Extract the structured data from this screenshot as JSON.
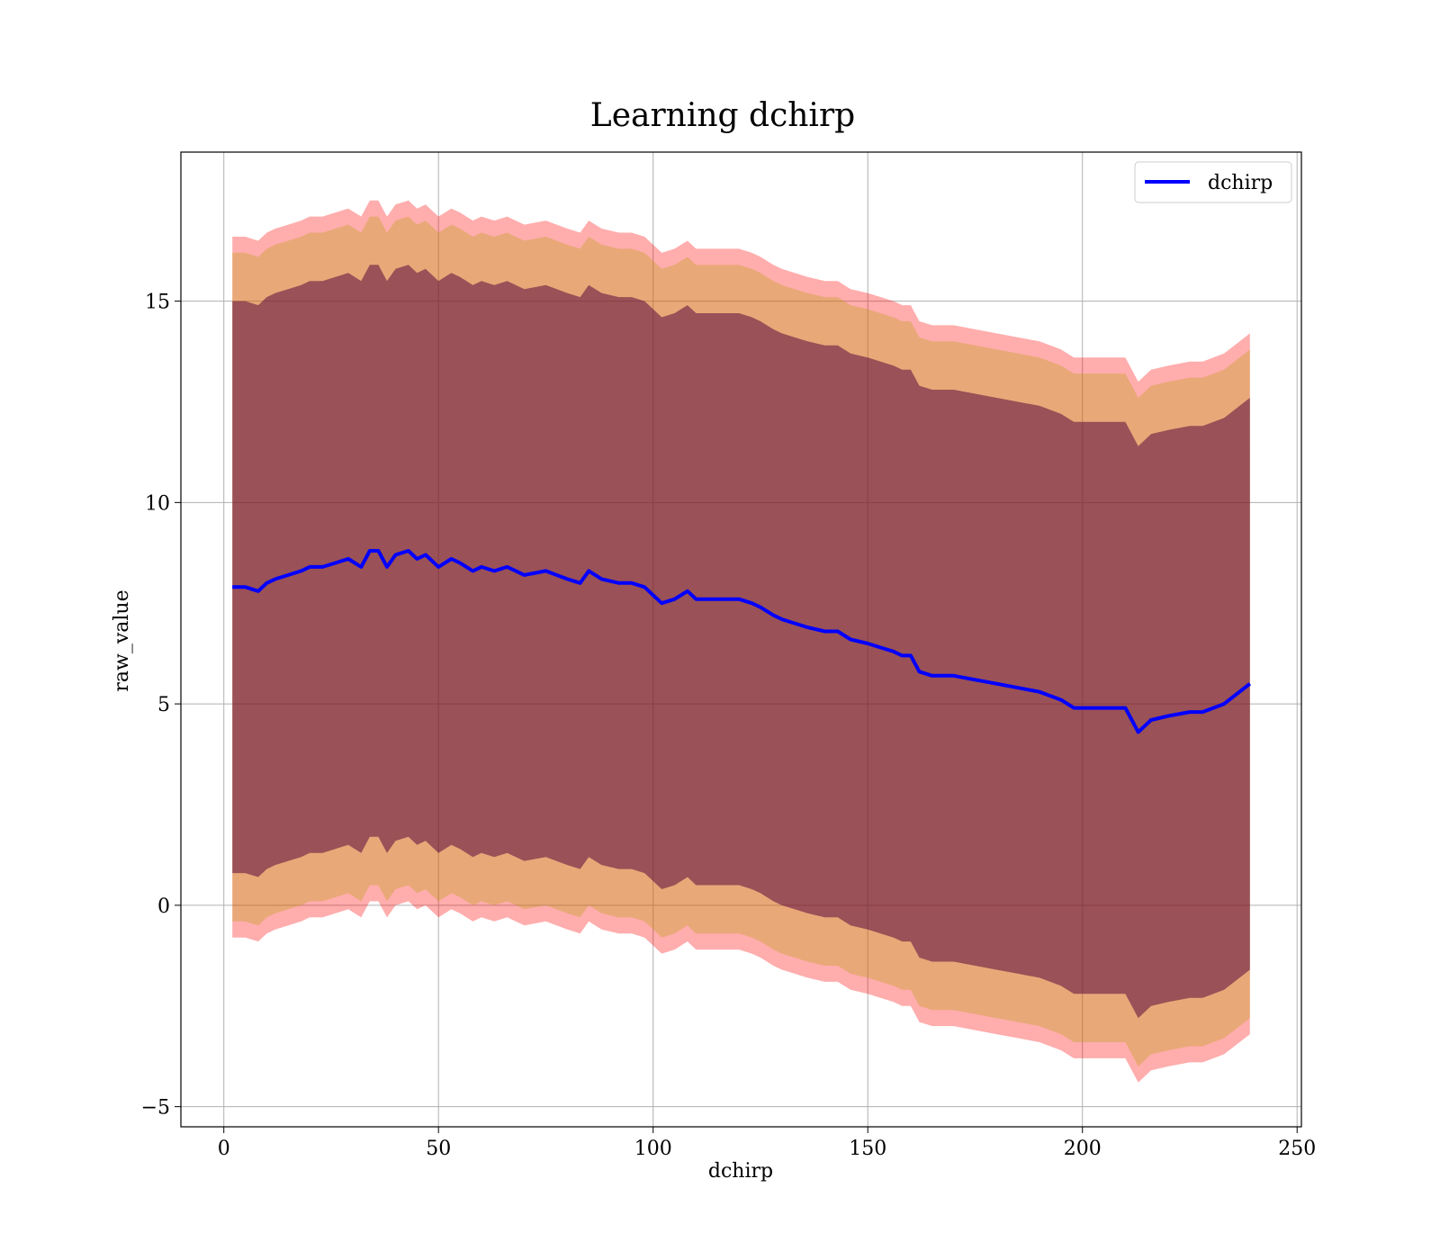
{
  "chart_data": {
    "type": "line",
    "title": "Learning dchirp",
    "xlabel": "dchirp",
    "ylabel": "raw_value",
    "xlim": [
      -10,
      251
    ],
    "ylim": [
      -5.5,
      18.7
    ],
    "xticks": [
      0,
      50,
      100,
      150,
      200,
      250
    ],
    "yticks": [
      -5,
      0,
      5,
      10,
      15
    ],
    "xtick_labels": [
      "0",
      "50",
      "100",
      "150",
      "200",
      "250"
    ],
    "ytick_labels": [
      "−5",
      "0",
      "5",
      "10",
      "15"
    ],
    "grid": true,
    "legend": {
      "location": "top-right",
      "entries": [
        "dchirp"
      ]
    },
    "colors": {
      "line": "#0000ff",
      "band_outer": "#ff0000",
      "band_middle": "#b5a000",
      "band_inner": "#5a0a3c"
    },
    "series": [
      {
        "name": "dchirp",
        "x": [
          2,
          5,
          8,
          10,
          12,
          15,
          18,
          20,
          23,
          26,
          29,
          32,
          34,
          36,
          38,
          40,
          43,
          45,
          47,
          50,
          53,
          55,
          58,
          60,
          63,
          66,
          70,
          75,
          80,
          83,
          85,
          88,
          92,
          95,
          98,
          100,
          102,
          105,
          108,
          110,
          113,
          116,
          120,
          123,
          125,
          128,
          130,
          133,
          136,
          140,
          143,
          146,
          150,
          153,
          156,
          158,
          160,
          162,
          165,
          170,
          175,
          180,
          185,
          190,
          195,
          198,
          200,
          205,
          210,
          213,
          216,
          220,
          225,
          228,
          233,
          239
        ],
        "values": [
          7.9,
          7.9,
          7.8,
          8.0,
          8.1,
          8.2,
          8.3,
          8.4,
          8.4,
          8.5,
          8.6,
          8.4,
          8.8,
          8.8,
          8.4,
          8.7,
          8.8,
          8.6,
          8.7,
          8.4,
          8.6,
          8.5,
          8.3,
          8.4,
          8.3,
          8.4,
          8.2,
          8.3,
          8.1,
          8.0,
          8.3,
          8.1,
          8.0,
          8.0,
          7.9,
          7.7,
          7.5,
          7.6,
          7.8,
          7.6,
          7.6,
          7.6,
          7.6,
          7.5,
          7.4,
          7.2,
          7.1,
          7.0,
          6.9,
          6.8,
          6.8,
          6.6,
          6.5,
          6.4,
          6.3,
          6.2,
          6.2,
          5.8,
          5.7,
          5.7,
          5.6,
          5.5,
          5.4,
          5.3,
          5.1,
          4.9,
          4.9,
          4.9,
          4.9,
          4.3,
          4.6,
          4.7,
          4.8,
          4.8,
          5.0,
          5.5
        ]
      }
    ],
    "bands": [
      {
        "name": "outer",
        "half_width": 8.7,
        "opacity": 0.32
      },
      {
        "name": "middle",
        "half_width": 8.3,
        "opacity": 0.3
      },
      {
        "name": "inner",
        "half_width": 7.1,
        "opacity": 0.55
      }
    ]
  }
}
